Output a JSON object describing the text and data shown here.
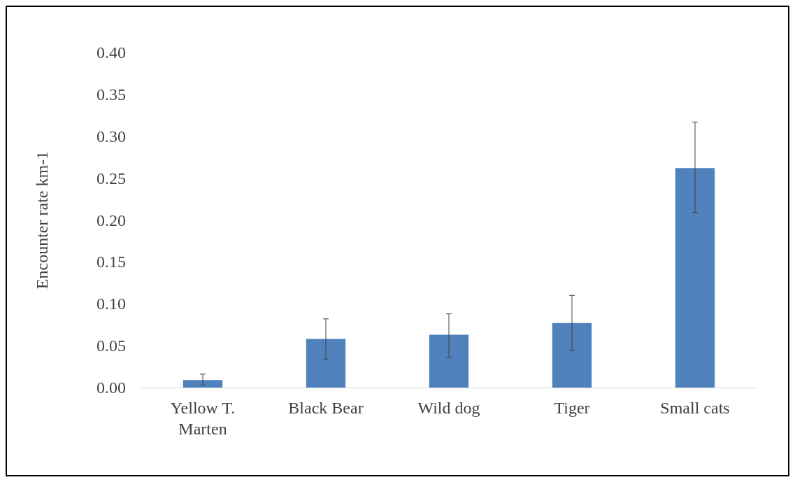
{
  "chart_data": {
    "type": "bar",
    "ylabel": "Encounter rate km-1",
    "categories": [
      "Yellow T.\nMarten",
      "Black Bear",
      "Wild dog",
      "Tiger",
      "Small cats"
    ],
    "values": [
      0.009,
      0.058,
      0.063,
      0.077,
      0.262
    ],
    "errors": [
      [
        0.003,
        0.016
      ],
      [
        0.034,
        0.082
      ],
      [
        0.036,
        0.088
      ],
      [
        0.044,
        0.11
      ],
      [
        0.209,
        0.317
      ]
    ],
    "color": "#4f81bd",
    "ylim": [
      0,
      0.4
    ],
    "yticks": [
      {
        "value": 0,
        "label": "0.00"
      },
      0.05,
      {
        "value": 0.1,
        "label": "0.10"
      },
      0.15,
      {
        "value": 0.2,
        "label": "0.20"
      },
      0.25,
      {
        "value": 0.3,
        "label": "0.30"
      },
      0.35,
      {
        "value": 0.4,
        "label": "0.40"
      }
    ],
    "grid": false
  }
}
